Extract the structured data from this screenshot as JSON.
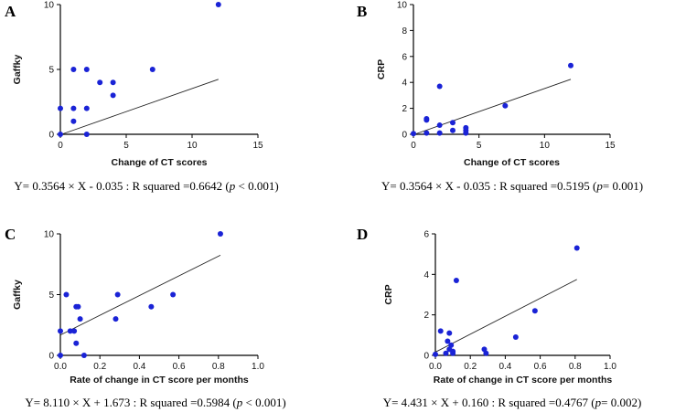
{
  "chart_data": [
    {
      "panel": "A",
      "type": "scatter",
      "xlabel": "Change of CT scores",
      "ylabel": "Gaffky",
      "xlim": [
        0,
        15
      ],
      "ylim": [
        0,
        10
      ],
      "xticks": [
        "0",
        "5",
        "10",
        "15"
      ],
      "yticks": [
        "0",
        "5",
        "10"
      ],
      "points": [
        [
          0,
          0
        ],
        [
          0,
          2
        ],
        [
          1,
          5
        ],
        [
          1,
          2
        ],
        [
          1,
          1
        ],
        [
          2,
          5
        ],
        [
          2,
          2
        ],
        [
          2,
          0
        ],
        [
          3,
          4
        ],
        [
          4,
          4
        ],
        [
          4,
          3
        ],
        [
          7,
          5
        ],
        [
          12,
          10
        ]
      ],
      "fit": {
        "slope": 0.3564,
        "intercept": -0.035,
        "x_range": [
          0,
          12
        ]
      },
      "equation": {
        "prefix": "Y= 0.3564 × X - 0.035 : R squared =0.6642 (",
        "p": "p",
        "suffix": " < 0.001)"
      }
    },
    {
      "panel": "B",
      "type": "scatter",
      "xlabel": "Change of CT scores",
      "ylabel": "CRP",
      "xlim": [
        0,
        15
      ],
      "ylim": [
        0,
        10
      ],
      "xticks": [
        "0",
        "5",
        "10",
        "15"
      ],
      "yticks": [
        "0",
        "2",
        "4",
        "6",
        "8",
        "10"
      ],
      "points": [
        [
          0,
          0.05
        ],
        [
          1,
          1.2
        ],
        [
          1,
          1.1
        ],
        [
          1,
          0.1
        ],
        [
          2,
          3.7
        ],
        [
          2,
          0.7
        ],
        [
          2,
          0.1
        ],
        [
          3,
          0.9
        ],
        [
          3,
          0.3
        ],
        [
          4,
          0.5
        ],
        [
          4,
          0.3
        ],
        [
          4,
          0.1
        ],
        [
          7,
          2.2
        ],
        [
          12,
          5.3
        ]
      ],
      "fit": {
        "slope": 0.3564,
        "intercept": -0.035,
        "x_range": [
          0,
          12
        ]
      },
      "equation": {
        "prefix": "Y= 0.3564 × X - 0.035 : R squared =0.5195 (",
        "p": "p",
        "suffix": "= 0.001)"
      }
    },
    {
      "panel": "C",
      "type": "scatter",
      "xlabel": "Rate of change in CT score per months",
      "ylabel": "Gaffky",
      "xlim": [
        0,
        1
      ],
      "ylim": [
        0,
        10
      ],
      "xticks": [
        "0.0",
        "0.2",
        "0.4",
        "0.6",
        "0.8",
        "1.0"
      ],
      "yticks": [
        "0",
        "5",
        "10"
      ],
      "points": [
        [
          0,
          0
        ],
        [
          0,
          2
        ],
        [
          0.03,
          5
        ],
        [
          0.05,
          2
        ],
        [
          0.07,
          2
        ],
        [
          0.08,
          4
        ],
        [
          0.08,
          1
        ],
        [
          0.09,
          4
        ],
        [
          0.1,
          3
        ],
        [
          0.12,
          0
        ],
        [
          0.28,
          3
        ],
        [
          0.29,
          5
        ],
        [
          0.46,
          4
        ],
        [
          0.57,
          5
        ],
        [
          0.81,
          10
        ]
      ],
      "fit": {
        "slope": 8.11,
        "intercept": 1.673,
        "x_range": [
          0,
          0.81
        ]
      },
      "equation": {
        "prefix": "Y= 8.110 × X + 1.673 : R squared =0.5984 (",
        "p": "p",
        "suffix": " < 0.001)"
      }
    },
    {
      "panel": "D",
      "type": "scatter",
      "xlabel": "Rate of change in CT score per months",
      "ylabel": "CRP",
      "xlim": [
        0,
        1
      ],
      "ylim": [
        0,
        6
      ],
      "xticks": [
        "0.0",
        "0.2",
        "0.4",
        "0.6",
        "0.8",
        "1.0"
      ],
      "yticks": [
        "0",
        "2",
        "4",
        "6"
      ],
      "points": [
        [
          0,
          0.05
        ],
        [
          0.03,
          1.2
        ],
        [
          0.06,
          0.1
        ],
        [
          0.07,
          0.7
        ],
        [
          0.08,
          1.1
        ],
        [
          0.08,
          0.3
        ],
        [
          0.09,
          0.5
        ],
        [
          0.1,
          0.2
        ],
        [
          0.1,
          0.1
        ],
        [
          0.12,
          3.7
        ],
        [
          0.28,
          0.3
        ],
        [
          0.29,
          0.1
        ],
        [
          0.46,
          0.9
        ],
        [
          0.57,
          2.2
        ],
        [
          0.81,
          5.3
        ]
      ],
      "fit": {
        "slope": 4.431,
        "intercept": 0.16,
        "x_range": [
          0,
          0.81
        ]
      },
      "equation": {
        "prefix": "Y= 4.431 × X + 0.160 : R squared =0.4767 (",
        "p": "p",
        "suffix": "= 0.002)"
      }
    }
  ],
  "colors": {
    "points": "#1a23d6",
    "fit_line": "#222222"
  }
}
